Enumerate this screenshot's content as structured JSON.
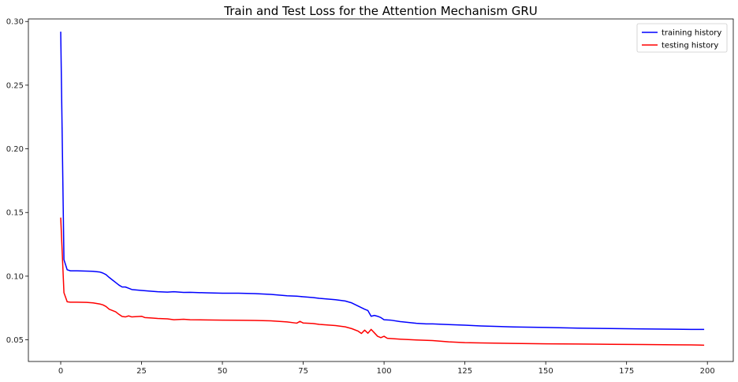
{
  "chart_data": {
    "type": "line",
    "title": "Train and Test Loss for the Attention Mechanism GRU",
    "xlabel": "",
    "ylabel": "",
    "xlim": [
      -10,
      208
    ],
    "ylim": [
      0.033,
      0.302
    ],
    "xticks": [
      0,
      25,
      50,
      75,
      100,
      125,
      150,
      175,
      200
    ],
    "yticks": [
      0.05,
      0.1,
      0.15,
      0.2,
      0.25,
      0.3
    ],
    "ytick_labels": [
      "0.05",
      "0.10",
      "0.15",
      "0.20",
      "0.25",
      "0.30"
    ],
    "grid": false,
    "legend_position": "top-right",
    "series": [
      {
        "name": "training history",
        "color": "#0000ff",
        "points": [
          [
            0,
            0.292
          ],
          [
            1,
            0.113
          ],
          [
            2,
            0.105
          ],
          [
            3,
            0.1042
          ],
          [
            5,
            0.1042
          ],
          [
            8,
            0.104
          ],
          [
            10,
            0.1038
          ],
          [
            12,
            0.1033
          ],
          [
            13,
            0.1025
          ],
          [
            14,
            0.1012
          ],
          [
            15,
            0.099
          ],
          [
            16,
            0.097
          ],
          [
            17,
            0.095
          ],
          [
            18,
            0.093
          ],
          [
            19,
            0.0915
          ],
          [
            20,
            0.0915
          ],
          [
            21,
            0.0905
          ],
          [
            22,
            0.0895
          ],
          [
            25,
            0.0888
          ],
          [
            28,
            0.0882
          ],
          [
            30,
            0.0878
          ],
          [
            33,
            0.0875
          ],
          [
            35,
            0.0878
          ],
          [
            38,
            0.0872
          ],
          [
            40,
            0.0873
          ],
          [
            45,
            0.0869
          ],
          [
            50,
            0.0866
          ],
          [
            55,
            0.0866
          ],
          [
            60,
            0.0863
          ],
          [
            65,
            0.0857
          ],
          [
            70,
            0.0846
          ],
          [
            73,
            0.0843
          ],
          [
            75,
            0.0838
          ],
          [
            78,
            0.0832
          ],
          [
            80,
            0.0826
          ],
          [
            85,
            0.0815
          ],
          [
            88,
            0.0805
          ],
          [
            90,
            0.079
          ],
          [
            92,
            0.0765
          ],
          [
            94,
            0.074
          ],
          [
            95,
            0.073
          ],
          [
            96,
            0.0685
          ],
          [
            97,
            0.0692
          ],
          [
            98,
            0.0685
          ],
          [
            99,
            0.0675
          ],
          [
            100,
            0.0658
          ],
          [
            102,
            0.0655
          ],
          [
            105,
            0.0643
          ],
          [
            110,
            0.063
          ],
          [
            113,
            0.0625
          ],
          [
            115,
            0.0625
          ],
          [
            120,
            0.062
          ],
          [
            125,
            0.0615
          ],
          [
            130,
            0.0609
          ],
          [
            140,
            0.0601
          ],
          [
            150,
            0.0597
          ],
          [
            160,
            0.0592
          ],
          [
            170,
            0.0589
          ],
          [
            180,
            0.0586
          ],
          [
            190,
            0.0583
          ],
          [
            195,
            0.0582
          ],
          [
            199,
            0.0582
          ]
        ]
      },
      {
        "name": "testing history",
        "color": "#ff0000",
        "points": [
          [
            0,
            0.146
          ],
          [
            1,
            0.087
          ],
          [
            2,
            0.0799
          ],
          [
            3,
            0.0796
          ],
          [
            5,
            0.0796
          ],
          [
            8,
            0.0794
          ],
          [
            10,
            0.079
          ],
          [
            12,
            0.0782
          ],
          [
            13,
            0.0775
          ],
          [
            14,
            0.0762
          ],
          [
            15,
            0.074
          ],
          [
            16,
            0.073
          ],
          [
            17,
            0.072
          ],
          [
            18,
            0.07
          ],
          [
            19,
            0.0683
          ],
          [
            20,
            0.068
          ],
          [
            21,
            0.0688
          ],
          [
            22,
            0.068
          ],
          [
            25,
            0.0685
          ],
          [
            26,
            0.0675
          ],
          [
            28,
            0.0672
          ],
          [
            30,
            0.0668
          ],
          [
            33,
            0.0665
          ],
          [
            35,
            0.0658
          ],
          [
            38,
            0.0662
          ],
          [
            40,
            0.0658
          ],
          [
            45,
            0.0656
          ],
          [
            50,
            0.0655
          ],
          [
            55,
            0.0654
          ],
          [
            60,
            0.0652
          ],
          [
            65,
            0.0649
          ],
          [
            70,
            0.0641
          ],
          [
            73,
            0.0631
          ],
          [
            74,
            0.0645
          ],
          [
            75,
            0.0632
          ],
          [
            78,
            0.0628
          ],
          [
            80,
            0.0621
          ],
          [
            85,
            0.0612
          ],
          [
            88,
            0.0602
          ],
          [
            90,
            0.0588
          ],
          [
            92,
            0.0568
          ],
          [
            93,
            0.055
          ],
          [
            94,
            0.0576
          ],
          [
            95,
            0.0552
          ],
          [
            96,
            0.0582
          ],
          [
            97,
            0.0555
          ],
          [
            98,
            0.0528
          ],
          [
            99,
            0.0517
          ],
          [
            100,
            0.0528
          ],
          [
            101,
            0.0512
          ],
          [
            105,
            0.0505
          ],
          [
            110,
            0.0499
          ],
          [
            115,
            0.0494
          ],
          [
            120,
            0.0484
          ],
          [
            125,
            0.0478
          ],
          [
            130,
            0.0476
          ],
          [
            140,
            0.0472
          ],
          [
            150,
            0.0469
          ],
          [
            160,
            0.0467
          ],
          [
            170,
            0.0465
          ],
          [
            180,
            0.0463
          ],
          [
            190,
            0.0461
          ],
          [
            195,
            0.046
          ],
          [
            199,
            0.0458
          ]
        ]
      }
    ]
  }
}
